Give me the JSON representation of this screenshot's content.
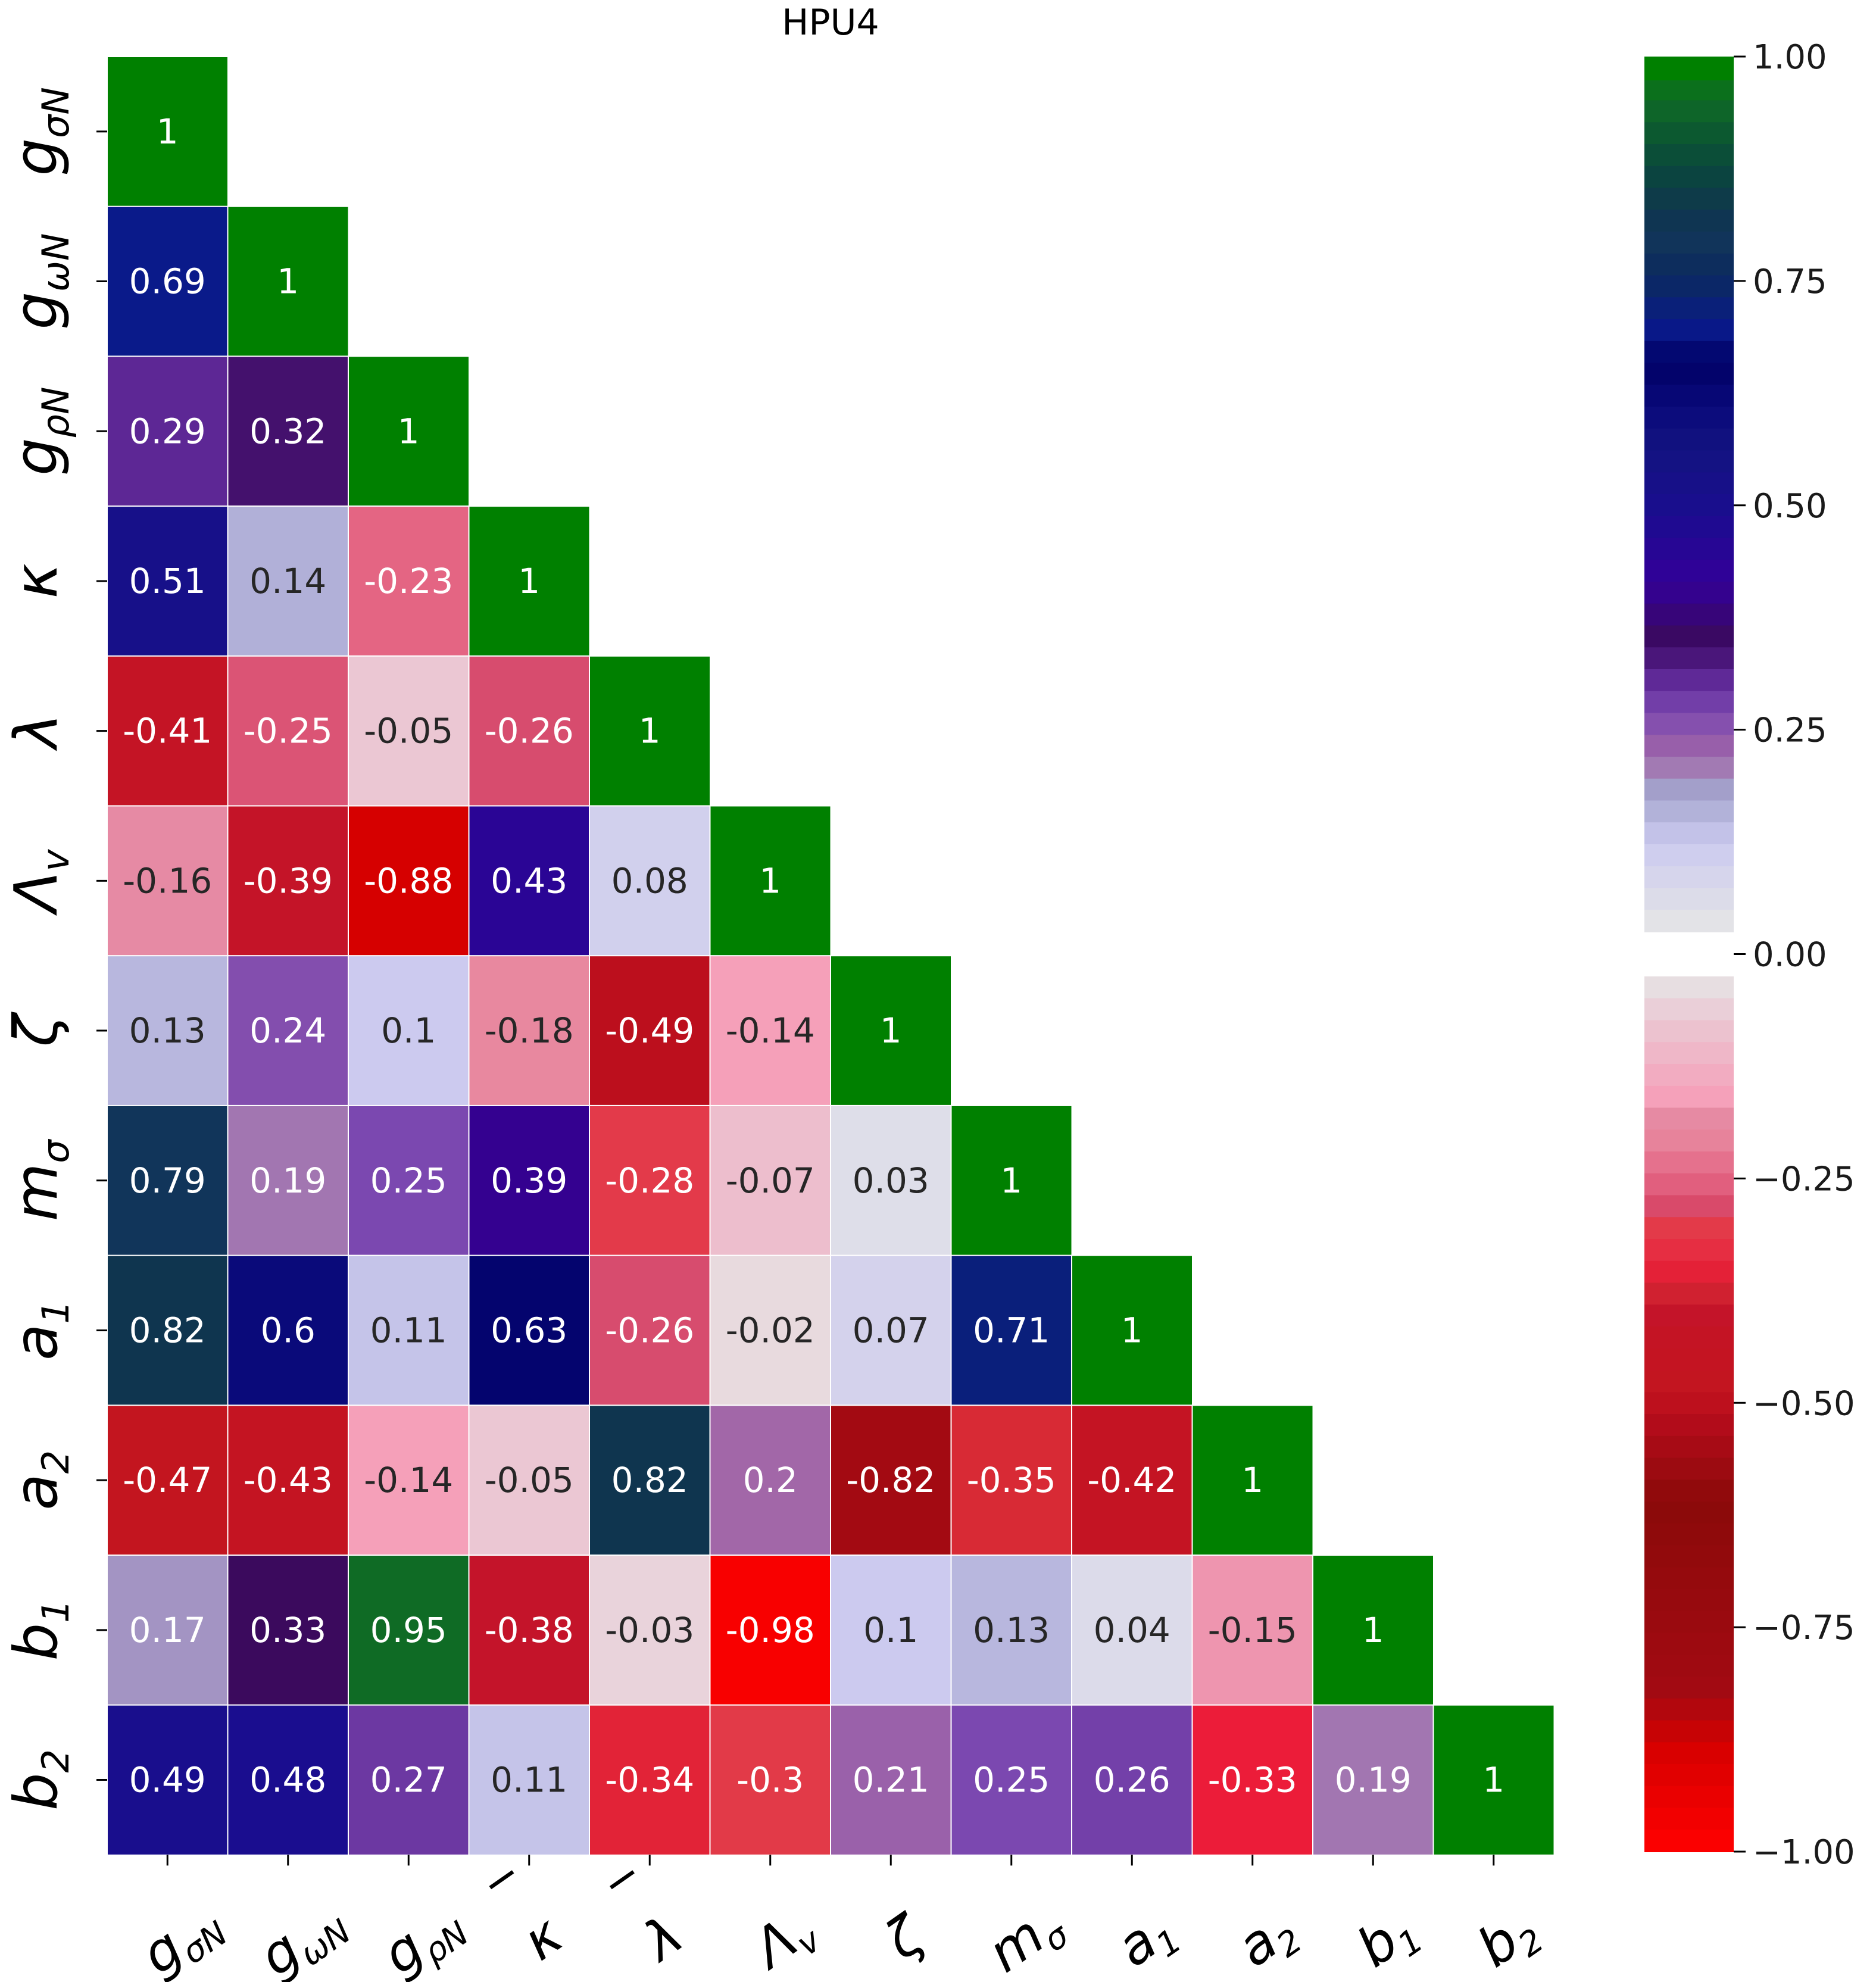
{
  "chart_data": {
    "type": "heatmap",
    "title": "HPU4",
    "variables": [
      {
        "base": "g",
        "sub": "σN",
        "over": ""
      },
      {
        "base": "g",
        "sub": "ωN",
        "over": ""
      },
      {
        "base": "g",
        "sub": "ρN",
        "over": ""
      },
      {
        "base": "κ",
        "sub": "",
        "over": "‾"
      },
      {
        "base": "λ",
        "sub": "",
        "over": "‾"
      },
      {
        "base": "Λ",
        "sub": "v",
        "over": ""
      },
      {
        "base": "ζ",
        "sub": "",
        "over": ""
      },
      {
        "base": "m",
        "sub": "σ",
        "over": ""
      },
      {
        "base": "a",
        "sub": "1",
        "over": ""
      },
      {
        "base": "a",
        "sub": "2",
        "over": ""
      },
      {
        "base": "b",
        "sub": "1",
        "over": ""
      },
      {
        "base": "b",
        "sub": "2",
        "over": ""
      }
    ],
    "lower_triangle": true,
    "values": [
      [
        1
      ],
      [
        0.69,
        1
      ],
      [
        0.29,
        0.32,
        1
      ],
      [
        0.51,
        0.14,
        -0.23,
        1
      ],
      [
        -0.41,
        -0.25,
        -0.05,
        -0.26,
        1
      ],
      [
        -0.16,
        -0.39,
        -0.88,
        0.43,
        0.08,
        1
      ],
      [
        0.13,
        0.24,
        0.1,
        -0.18,
        -0.49,
        -0.14,
        1
      ],
      [
        0.79,
        0.19,
        0.25,
        0.39,
        -0.28,
        -0.07,
        0.03,
        1
      ],
      [
        0.82,
        0.6,
        0.11,
        0.63,
        -0.26,
        -0.02,
        0.07,
        0.71,
        1
      ],
      [
        -0.47,
        -0.43,
        -0.14,
        -0.05,
        0.82,
        0.2,
        -0.82,
        -0.35,
        -0.42,
        1
      ],
      [
        0.17,
        0.33,
        0.95,
        -0.38,
        -0.03,
        -0.98,
        0.1,
        0.13,
        0.04,
        -0.15,
        1
      ],
      [
        0.49,
        0.48,
        0.27,
        0.11,
        -0.34,
        -0.3,
        0.21,
        0.25,
        0.26,
        -0.33,
        0.19,
        1
      ]
    ],
    "colorbar": {
      "range": [
        -1.0,
        1.0
      ],
      "ticks": [
        1.0,
        0.75,
        0.5,
        0.25,
        0.0,
        -0.25,
        -0.5,
        -0.75,
        -1.0
      ],
      "tick_labels": [
        "1.00",
        "0.75",
        "0.50",
        "0.25",
        "0.00",
        "−0.25",
        "−0.50",
        "−0.75",
        "−1.00"
      ],
      "gap_between_positive_and_negative": true
    },
    "colors": {
      "diagonal": "#008000",
      "positive_stops": [
        [
          0.0,
          "#e6e6e6"
        ],
        [
          0.1,
          "#cccaef"
        ],
        [
          0.16,
          "#a3a3cc"
        ],
        [
          0.2,
          "#a267a8"
        ],
        [
          0.25,
          "#7b48b0"
        ],
        [
          0.3,
          "#551f8e"
        ],
        [
          0.33,
          "#3b0a5d"
        ],
        [
          0.4,
          "#330099"
        ],
        [
          0.48,
          "#1a0d8f"
        ],
        [
          0.55,
          "#131380"
        ],
        [
          0.6,
          "#0a0a7a"
        ],
        [
          0.65,
          "#000066"
        ],
        [
          0.69,
          "#0a1a8a"
        ],
        [
          0.75,
          "#0b2a5e"
        ],
        [
          0.79,
          "#11355a"
        ],
        [
          0.82,
          "#0f354f"
        ],
        [
          0.88,
          "#0a4a3a"
        ],
        [
          0.95,
          "#0f6b25"
        ],
        [
          1.0,
          "#008000"
        ]
      ],
      "negative_stops": [
        [
          0.0,
          "#e6e6e6"
        ],
        [
          0.05,
          "#ebc7d3"
        ],
        [
          0.1,
          "#f0b1c4"
        ],
        [
          0.14,
          "#f5a0b9"
        ],
        [
          0.16,
          "#e68aa4"
        ],
        [
          0.18,
          "#e8889f"
        ],
        [
          0.23,
          "#e46583"
        ],
        [
          0.26,
          "#d74c6e"
        ],
        [
          0.28,
          "#e33a4a"
        ],
        [
          0.3,
          "#e23a48"
        ],
        [
          0.33,
          "#ec1c39"
        ],
        [
          0.35,
          "#d82a35"
        ],
        [
          0.38,
          "#c4142a"
        ],
        [
          0.42,
          "#c41423"
        ],
        [
          0.47,
          "#c3151f"
        ],
        [
          0.5,
          "#b80c1c"
        ],
        [
          0.6,
          "#8b0a0a"
        ],
        [
          0.82,
          "#a30a12"
        ],
        [
          0.88,
          "#d60000"
        ],
        [
          1.0,
          "#ff0000"
        ]
      ]
    }
  }
}
